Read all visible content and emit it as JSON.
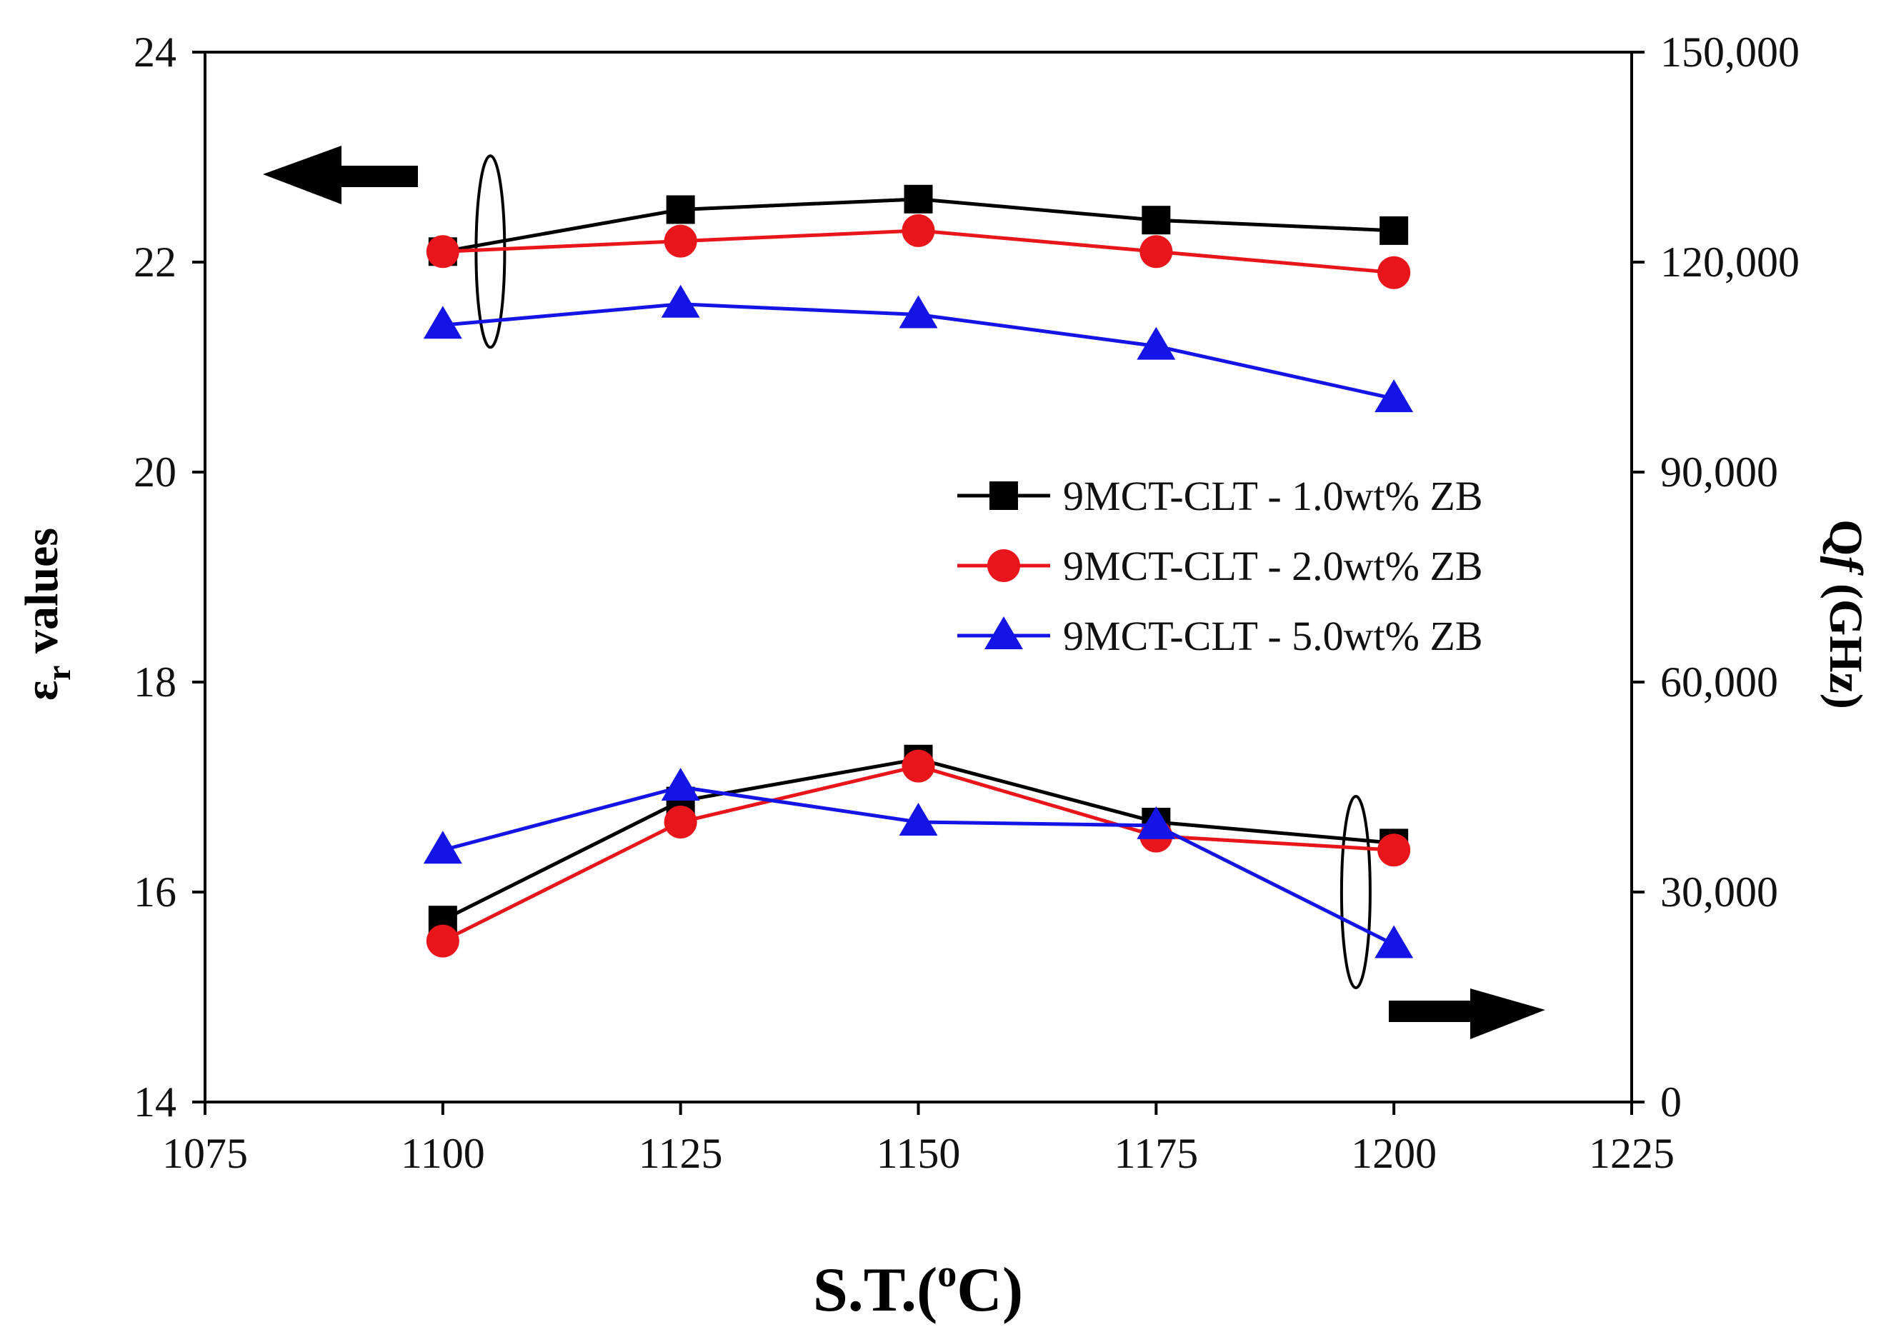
{
  "chart_data": {
    "type": "line",
    "title": "",
    "xlabel": "S.T.(°C)",
    "xlabel_parts": {
      "pre": "S.T.(",
      "sup": "o",
      "post": "C)"
    },
    "ylabel_left": "εr values",
    "ylabel_left_parts": {
      "sym": "ε",
      "sub": "r",
      "rest": " values"
    },
    "ylabel_right": "Qf (GHz)",
    "ylabel_right_parts": {
      "q": "Q",
      "f": "f",
      "rest": " (GHz)"
    },
    "x": [
      1100,
      1125,
      1150,
      1175,
      1200
    ],
    "xlim": [
      1075,
      1225
    ],
    "xticks": [
      1075,
      1100,
      1125,
      1150,
      1175,
      1200,
      1225
    ],
    "ylim_left": [
      14,
      24
    ],
    "yticks_left": [
      14,
      16,
      18,
      20,
      22,
      24
    ],
    "ylim_right": [
      0,
      150000
    ],
    "yticks_right": [
      0,
      30000,
      60000,
      90000,
      120000,
      150000
    ],
    "yticks_right_labels": [
      "0",
      "30,000",
      "60,000",
      "90,000",
      "120,000",
      "150,000"
    ],
    "legend_position": "center-right",
    "series": [
      {
        "name": "9MCT-CLT - 1.0wt% ZB",
        "color": "#000000",
        "marker": "square",
        "er": [
          22.1,
          22.5,
          22.6,
          22.4,
          22.3
        ],
        "qf": [
          26000,
          43000,
          49000,
          40000,
          37000
        ]
      },
      {
        "name": "9MCT-CLT - 2.0wt% ZB",
        "color": "#e8151b",
        "marker": "circle",
        "er": [
          22.1,
          22.2,
          22.3,
          22.1,
          21.9
        ],
        "qf": [
          23000,
          40000,
          48000,
          38000,
          36000
        ]
      },
      {
        "name": "9MCT-CLT - 5.0wt% ZB",
        "color": "#1414e6",
        "marker": "triangle",
        "er": [
          21.4,
          21.6,
          21.5,
          21.2,
          20.7
        ],
        "qf": [
          36000,
          45000,
          40000,
          39500,
          22500
        ]
      }
    ],
    "annotations": [
      {
        "type": "arrow",
        "direction": "left",
        "indicates": "left axis (εr)"
      },
      {
        "type": "arrow",
        "direction": "right",
        "indicates": "right axis (Qf)"
      },
      {
        "type": "ellipse",
        "groups": "εr curves",
        "x": 1105,
        "y_center": 22.1
      },
      {
        "type": "ellipse",
        "groups": "Qf curves",
        "x": 1196,
        "y_center": 30000
      }
    ]
  }
}
